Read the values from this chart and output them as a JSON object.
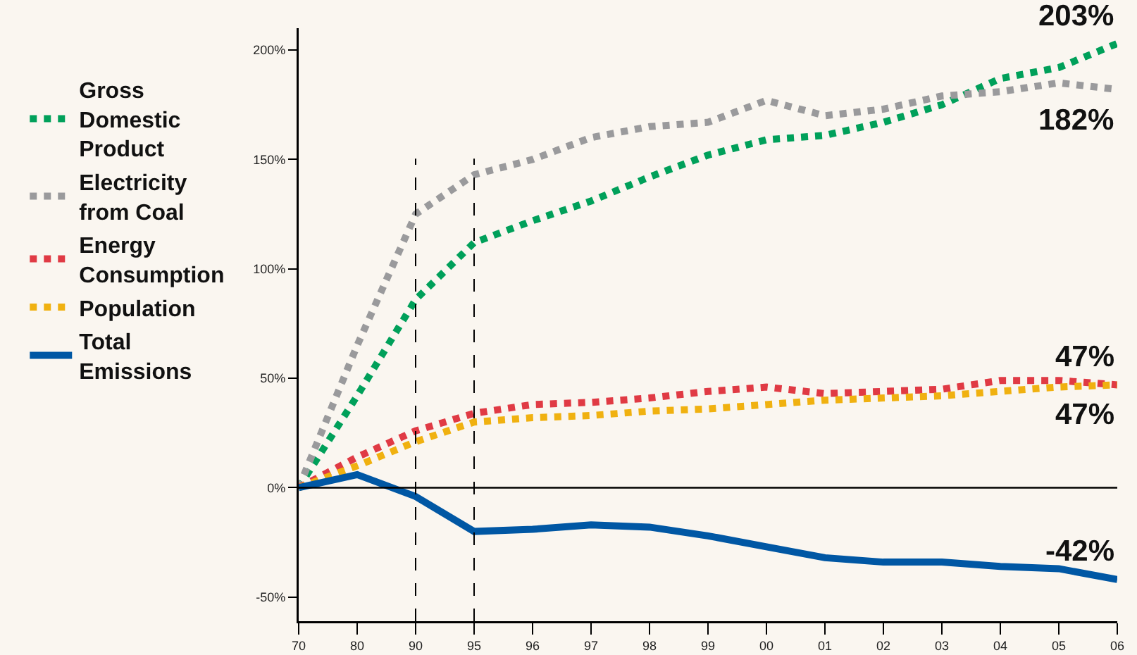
{
  "chart_data": {
    "type": "line",
    "categories": [
      "70",
      "80",
      "90",
      "95",
      "96",
      "97",
      "98",
      "99",
      "00",
      "01",
      "02",
      "03",
      "04",
      "05",
      "06"
    ],
    "series": [
      {
        "name": "Gross Domestic Product",
        "color": "#00a05a",
        "line_style": "dotted",
        "values": [
          0,
          42,
          86,
          112,
          122,
          131,
          142,
          152,
          159,
          161,
          167,
          175,
          187,
          192,
          203
        ]
      },
      {
        "name": "Electricity from Coal",
        "color": "#9a9a9c",
        "line_style": "dotted",
        "values": [
          0,
          65,
          125,
          143,
          150,
          160,
          165,
          167,
          177,
          170,
          173,
          179,
          181,
          185,
          182
        ]
      },
      {
        "name": "Energy Consumption",
        "color": "#e03a44",
        "line_style": "dotted",
        "values": [
          0,
          14,
          26,
          34,
          38,
          39,
          41,
          44,
          46,
          43,
          44,
          45,
          49,
          49,
          47
        ]
      },
      {
        "name": "Population",
        "color": "#f0b110",
        "line_style": "dotted",
        "values": [
          0,
          10,
          21,
          30,
          32,
          33,
          35,
          36,
          38,
          40,
          41,
          42,
          44,
          46,
          47
        ]
      },
      {
        "name": "Total Emissions",
        "color": "#0057a4",
        "line_style": "solid",
        "values": [
          0,
          6,
          -4,
          -20,
          -19,
          -17,
          -18,
          -22,
          -27,
          -32,
          -34,
          -34,
          -36,
          -37,
          -42
        ]
      }
    ],
    "ylim": [
      -61,
      210
    ],
    "yticks": [
      {
        "value": -50,
        "label": "-50%"
      },
      {
        "value": 0,
        "label": "0%"
      },
      {
        "value": 50,
        "label": "50%"
      },
      {
        "value": 100,
        "label": "100%"
      },
      {
        "value": 150,
        "label": "150%"
      },
      {
        "value": 200,
        "label": "200%"
      }
    ],
    "ref_lines": [
      {
        "axis": "y",
        "value": 0,
        "color": "#000000",
        "line_style": "solid"
      },
      {
        "axis": "x",
        "value": "90",
        "color": "#000000",
        "line_style": "dashed"
      },
      {
        "axis": "x",
        "value": "95",
        "color": "#000000",
        "line_style": "dashed"
      }
    ],
    "annotations": [
      {
        "text": "203%",
        "x": "06",
        "y": 203
      },
      {
        "text": "182%",
        "x": "06",
        "y": 182
      },
      {
        "text": "47%",
        "x": "06",
        "y": 47
      },
      {
        "text": "47%",
        "x": "06",
        "y": 47
      },
      {
        "text": "-42%",
        "x": "06",
        "y": -42
      }
    ],
    "legend": "left",
    "grid": false,
    "marker": "none"
  }
}
